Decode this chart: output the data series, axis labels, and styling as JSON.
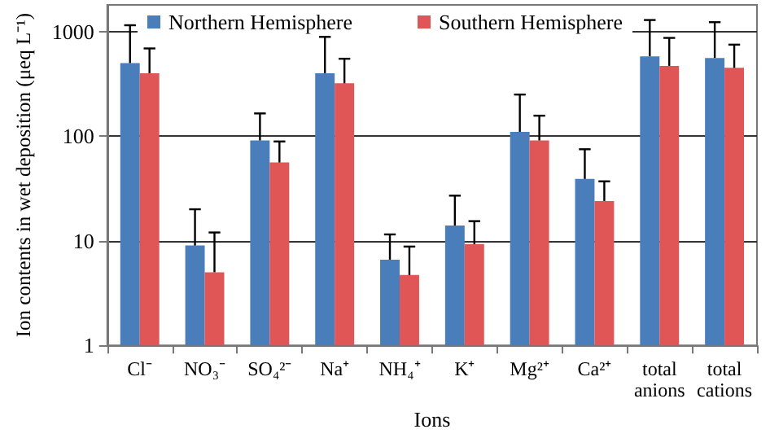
{
  "chart_data": {
    "type": "bar",
    "xlabel": "Ions",
    "ylabel": "Ion contents in wet deposition (μeq L⁻¹)",
    "categories": [
      "Cl⁻",
      "NO₃⁻",
      "SO₄²⁻",
      "Na⁺",
      "NH₄⁺",
      "K⁺",
      "Mg²⁺",
      "Ca²⁺",
      "total anions",
      "total cations"
    ],
    "series": [
      {
        "name": "Northern Hemisphere",
        "color": "#4a7ebb",
        "values": [
          500,
          9,
          91,
          400,
          6.6,
          14,
          110,
          39,
          580,
          560
        ],
        "errors": [
          [
            500,
            1150
          ],
          [
            9,
            20
          ],
          [
            91,
            165
          ],
          [
            400,
            890
          ],
          [
            6.6,
            11.5
          ],
          [
            14,
            27
          ],
          [
            110,
            250
          ],
          [
            39,
            75
          ],
          [
            580,
            1290
          ],
          [
            560,
            1230
          ]
        ]
      },
      {
        "name": "Southern Hemisphere",
        "color": "#e05555",
        "values": [
          400,
          5,
          56,
          320,
          4.7,
          9.3,
          91,
          24,
          470,
          450
        ],
        "errors": [
          [
            400,
            690
          ],
          [
            5,
            12
          ],
          [
            56,
            89
          ],
          [
            320,
            550
          ],
          [
            4.7,
            8.8
          ],
          [
            9.3,
            15.4
          ],
          [
            91,
            157
          ],
          [
            24,
            37
          ],
          [
            470,
            870
          ],
          [
            450,
            750
          ]
        ]
      }
    ],
    "log": true,
    "ylim": [
      1,
      1800
    ],
    "yticks": [
      1,
      10,
      100,
      1000
    ],
    "grid": "y",
    "legend": "top"
  }
}
